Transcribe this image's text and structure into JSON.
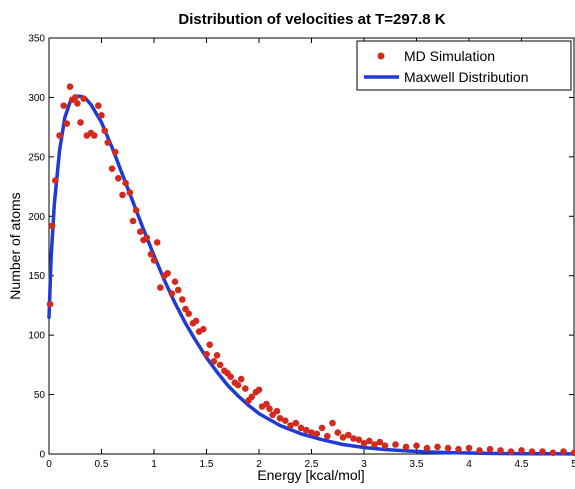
{
  "chart_data": {
    "type": "scatter",
    "title": "Distribution of velocities at T=297.8 K",
    "xlabel": "Energy [kcal/mol]",
    "ylabel": "Number of atoms",
    "xlim": [
      0,
      5
    ],
    "ylim": [
      0,
      350
    ],
    "xticks": [
      0,
      0.5,
      1,
      1.5,
      2,
      2.5,
      3,
      3.5,
      4,
      4.5,
      5
    ],
    "xtick_labels": [
      "0",
      "0.5",
      "1",
      "1.5",
      "2",
      "2.5",
      "3",
      "3.5",
      "4",
      "4.5",
      "5"
    ],
    "yticks": [
      0,
      50,
      100,
      150,
      200,
      250,
      300,
      350
    ],
    "ytick_labels": [
      "0",
      "50",
      "100",
      "150",
      "200",
      "250",
      "300",
      "350"
    ],
    "grid": false,
    "legend_position": "top-right",
    "series": [
      {
        "name": "MD Simulation",
        "kind": "points",
        "color": "#d42a1e",
        "x": [
          0.01,
          0.03,
          0.06,
          0.1,
          0.14,
          0.17,
          0.2,
          0.22,
          0.25,
          0.27,
          0.3,
          0.33,
          0.36,
          0.4,
          0.43,
          0.47,
          0.5,
          0.53,
          0.56,
          0.6,
          0.63,
          0.66,
          0.7,
          0.73,
          0.77,
          0.8,
          0.83,
          0.87,
          0.9,
          0.93,
          0.97,
          1.0,
          1.03,
          1.06,
          1.1,
          1.13,
          1.17,
          1.2,
          1.23,
          1.27,
          1.3,
          1.33,
          1.37,
          1.4,
          1.43,
          1.47,
          1.5,
          1.53,
          1.57,
          1.6,
          1.63,
          1.67,
          1.7,
          1.73,
          1.77,
          1.8,
          1.83,
          1.87,
          1.9,
          1.93,
          1.97,
          2.0,
          2.03,
          2.07,
          2.1,
          2.13,
          2.17,
          2.2,
          2.25,
          2.3,
          2.35,
          2.4,
          2.45,
          2.5,
          2.55,
          2.6,
          2.65,
          2.7,
          2.75,
          2.8,
          2.85,
          2.9,
          2.95,
          3.0,
          3.05,
          3.1,
          3.15,
          3.2,
          3.3,
          3.4,
          3.5,
          3.6,
          3.7,
          3.8,
          3.9,
          4.0,
          4.1,
          4.2,
          4.3,
          4.4,
          4.5,
          4.6,
          4.7,
          4.8,
          4.9,
          5.0
        ],
        "y": [
          126,
          192,
          230,
          268,
          293,
          278,
          309,
          298,
          300,
          295,
          279,
          299,
          268,
          270,
          268,
          293,
          285,
          272,
          262,
          240,
          254,
          232,
          218,
          228,
          220,
          196,
          205,
          187,
          180,
          182,
          168,
          163,
          178,
          140,
          150,
          152,
          135,
          145,
          138,
          130,
          122,
          118,
          110,
          112,
          103,
          105,
          84,
          92,
          78,
          83,
          75,
          70,
          68,
          65,
          60,
          58,
          63,
          55,
          45,
          48,
          52,
          54,
          40,
          42,
          38,
          33,
          36,
          30,
          28,
          24,
          26,
          22,
          20,
          18,
          17,
          22,
          15,
          26,
          18,
          14,
          16,
          13,
          12,
          9,
          11,
          8,
          10,
          7,
          8,
          6,
          7,
          5,
          6,
          5,
          4,
          5,
          3,
          4,
          3,
          2,
          3,
          2,
          2,
          1,
          2,
          1
        ]
      },
      {
        "name": "Maxwell Distribution",
        "kind": "line",
        "color": "#1f3ad6",
        "x": [
          0.0,
          0.02,
          0.05,
          0.1,
          0.15,
          0.2,
          0.25,
          0.3,
          0.35,
          0.4,
          0.5,
          0.6,
          0.7,
          0.8,
          0.9,
          1.0,
          1.1,
          1.2,
          1.3,
          1.4,
          1.5,
          1.6,
          1.7,
          1.8,
          1.9,
          2.0,
          2.2,
          2.4,
          2.6,
          2.8,
          3.0,
          3.2,
          3.4,
          3.6,
          3.8,
          4.0,
          4.2,
          4.4,
          4.6,
          4.8,
          5.0
        ],
        "y": [
          115,
          165,
          210,
          255,
          283,
          296,
          301,
          301,
          299,
          294,
          279,
          258,
          235,
          212,
          189,
          167,
          146,
          127,
          110,
          95,
          81,
          69,
          58,
          49,
          41,
          34,
          24,
          17,
          12,
          8,
          5.5,
          3.8,
          2.6,
          1.8,
          1.2,
          0.8,
          0.5,
          0.35,
          0.24,
          0.16,
          0.1
        ]
      }
    ]
  }
}
